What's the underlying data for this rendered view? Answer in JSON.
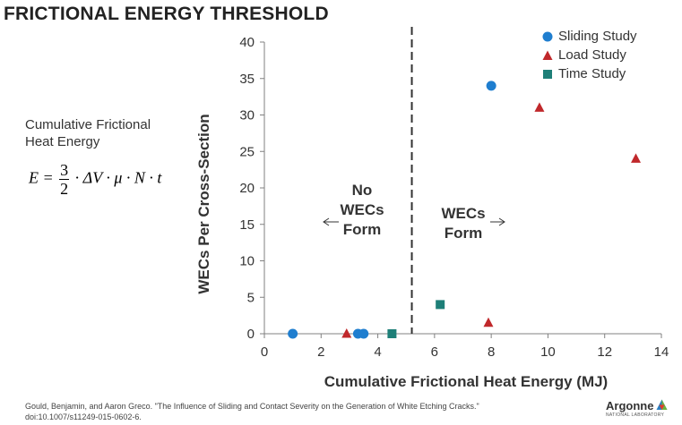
{
  "title": "FRICTIONAL ENERGY THRESHOLD",
  "formula": {
    "label_line1": "Cumulative Frictional",
    "label_line2": "Heat Energy",
    "lhs": "E =",
    "frac_num": "3",
    "frac_den": "2",
    "rhs": "· ΔV · μ · N · t"
  },
  "citation": {
    "line1": "Gould, Benjamin, and Aaron Greco. \"The Influence of Sliding and Contact Severity on the Generation of White Etching Cracks.\"",
    "line2": "doi:10.1007/s11249-015-0602-6."
  },
  "logo": {
    "text": "Argonne",
    "subtext": "NATIONAL LABORATORY"
  },
  "legend_position": "top-right",
  "colors": {
    "sliding": "#1f7ecf",
    "load": "#c0282b",
    "time": "#1e7f78",
    "axis": "#808080",
    "text": "#333333"
  },
  "chart_data": {
    "type": "scatter",
    "xlabel": "Cumulative Frictional Heat Energy (MJ)",
    "ylabel": "WECs Per Cross-Section",
    "xlim": [
      0,
      14
    ],
    "ylim": [
      0,
      40
    ],
    "xticks": [
      0,
      2,
      4,
      6,
      8,
      10,
      12,
      14
    ],
    "yticks": [
      0,
      5,
      10,
      15,
      20,
      25,
      30,
      35,
      40
    ],
    "grid": false,
    "threshold_x": 5.2,
    "series": [
      {
        "name": "Sliding Study",
        "marker": "circle",
        "color": "#1f7ecf",
        "points": [
          [
            1.0,
            0
          ],
          [
            3.3,
            0
          ],
          [
            3.5,
            0
          ],
          [
            8.0,
            34
          ]
        ]
      },
      {
        "name": "Load Study",
        "marker": "triangle",
        "color": "#c0282b",
        "points": [
          [
            2.9,
            0
          ],
          [
            7.9,
            1.5
          ],
          [
            9.7,
            31
          ],
          [
            13.1,
            24
          ]
        ]
      },
      {
        "name": "Time Study",
        "marker": "square",
        "color": "#1e7f78",
        "points": [
          [
            4.5,
            0
          ],
          [
            6.2,
            4
          ]
        ]
      }
    ],
    "annotations": {
      "left": [
        "No",
        "WECs",
        "Form"
      ],
      "right": [
        "WECs",
        "Form"
      ]
    }
  }
}
